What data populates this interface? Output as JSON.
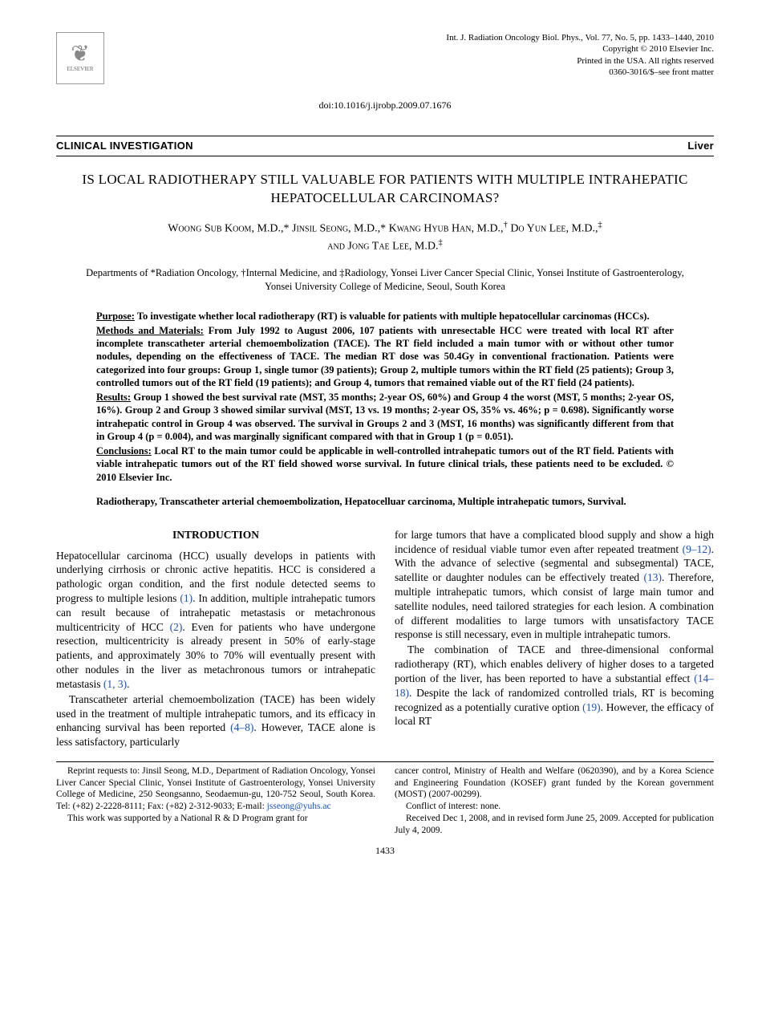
{
  "header": {
    "journal_line": "Int. J. Radiation Oncology Biol. Phys., Vol. 77, No. 5, pp. 1433–1440, 2010",
    "copyright": "Copyright © 2010 Elsevier Inc.",
    "printed": "Printed in the USA. All rights reserved",
    "issn": "0360-3016/$–see front matter",
    "publisher_label": "ELSEVIER",
    "doi": "doi:10.1016/j.ijrobp.2009.07.1676"
  },
  "section_bar": {
    "left": "CLINICAL INVESTIGATION",
    "right": "Liver"
  },
  "title": "IS LOCAL RADIOTHERAPY STILL VALUABLE FOR PATIENTS WITH MULTIPLE INTRAHEPATIC HEPATOCELLULAR CARCINOMAS?",
  "authors_html": "Woong Sub Koom, M.D.,* Jinsil Seong, M.D.,* Kwang Hyub Han, M.D.,† Do Yun Lee, M.D.,‡ and Jong Tae Lee, M.D.‡",
  "affiliations": "Departments of *Radiation Oncology, †Internal Medicine, and ‡Radiology, Yonsei Liver Cancer Special Clinic, Yonsei Institute of Gastroenterology, Yonsei University College of Medicine, Seoul, South Korea",
  "abstract": {
    "purpose_label": "Purpose:",
    "purpose": " To investigate whether local radiotherapy (RT) is valuable for patients with multiple hepatocellular carcinomas (HCCs).",
    "methods_label": "Methods and Materials:",
    "methods": " From July 1992 to August 2006, 107 patients with unresectable HCC were treated with local RT after incomplete transcatheter arterial chemoembolization (TACE). The RT field included a main tumor with or without other tumor nodules, depending on the effectiveness of TACE. The median RT dose was 50.4Gy in conventional fractionation. Patients were categorized into four groups: Group 1, single tumor (39 patients); Group 2, multiple tumors within the RT field (25 patients); Group 3, controlled tumors out of the RT field (19 patients); and Group 4, tumors that remained viable out of the RT field (24 patients).",
    "results_label": "Results:",
    "results": " Group 1 showed the best survival rate (MST, 35 months; 2-year OS, 60%) and Group 4 the worst (MST, 5 months; 2-year OS, 16%). Group 2 and Group 3 showed similar survival (MST, 13 vs. 19 months; 2-year OS, 35% vs. 46%; p = 0.698). Significantly worse intrahepatic control in Group 4 was observed. The survival in Groups 2 and 3 (MST, 16 months) was significantly different from that in Group 4 (p = 0.004), and was marginally significant compared with that in Group 1 (p = 0.051).",
    "conclusions_label": "Conclusions:",
    "conclusions": " Local RT to the main tumor could be applicable in well-controlled intrahepatic tumors out of the RT field. Patients with viable intrahepatic tumors out of the RT field showed worse survival. In future clinical trials, these patients need to be excluded.   © 2010 Elsevier Inc."
  },
  "keywords": "Radiotherapy, Transcatheter arterial chemoembolization, Hepatocelluar carcinoma, Multiple intrahepatic tumors, Survival.",
  "body": {
    "intro_heading": "INTRODUCTION",
    "left_p1_a": "Hepatocellular carcinoma (HCC) usually develops in patients with underlying cirrhosis or chronic active hepatitis. HCC is considered a pathologic organ condition, and the first nodule detected seems to progress to multiple lesions ",
    "left_ref1": "(1)",
    "left_p1_b": ". In addition, multiple intrahepatic tumors can result because of intrahepatic metastasis or metachronous multicentricity of HCC ",
    "left_ref2": "(2)",
    "left_p1_c": ". Even for patients who have undergone resection, multicentricity is already present in 50% of early-stage patients, and approximately 30% to 70% will eventually present with other nodules in the liver as metachronous tumors or intrahepatic metastasis ",
    "left_ref3": "(1, 3)",
    "left_p1_d": ".",
    "left_p2_a": "Transcatheter arterial chemoembolization (TACE) has been widely used in the treatment of multiple intrahepatic tumors, and its efficacy in enhancing survival has been reported ",
    "left_ref4": "(4–8)",
    "left_p2_b": ". However, TACE alone is less satisfactory, particularly",
    "right_p1_a": "for large tumors that have a complicated blood supply and show a high incidence of residual viable tumor even after repeated treatment ",
    "right_ref1": "(9–12)",
    "right_p1_b": ". With the advance of selective (segmental and subsegmental) TACE, satellite or daughter nodules can be effectively treated ",
    "right_ref2": "(13)",
    "right_p1_c": ". Therefore, multiple intrahepatic tumors, which consist of large main tumor and satellite nodules, need tailored strategies for each lesion. A combination of different modalities to large tumors with unsatisfactory TACE response is still necessary, even in multiple intrahepatic tumors.",
    "right_p2_a": "The combination of TACE and three-dimensional conformal radiotherapy (RT), which enables delivery of higher doses to a targeted portion of the liver, has been reported to have a substantial effect ",
    "right_ref3": "(14–18)",
    "right_p2_b": ". Despite the lack of randomized controlled trials, RT is becoming recognized as a potentially curative option ",
    "right_ref4": "(19)",
    "right_p2_c": ". However, the efficacy of local RT"
  },
  "footer": {
    "left_p1_a": "Reprint requests to: Jinsil Seong, M.D., Department of Radiation Oncology, Yonsei Liver Cancer Special Clinic, Yonsei Institute of Gastroenterology, Yonsei University College of Medicine, 250 Seongsanno, Seodaemun-gu, 120-752 Seoul, South Korea. Tel: (+82) 2-2228-8111; Fax: (+82) 2-312-9033; E-mail: ",
    "email": "jsseong@yuhs.ac",
    "left_p2": "This work was supported by a National R & D Program grant for",
    "right_p1": "cancer control, Ministry of Health and Welfare (0620390), and by a Korea Science and Engineering Foundation (KOSEF) grant funded by the Korean government (MOST) (2007-00299).",
    "right_p2": "Conflict of interest: none.",
    "right_p3": "Received Dec 1, 2008, and in revised form June 25, 2009. Accepted for publication July 4, 2009."
  },
  "page_number": "1433"
}
